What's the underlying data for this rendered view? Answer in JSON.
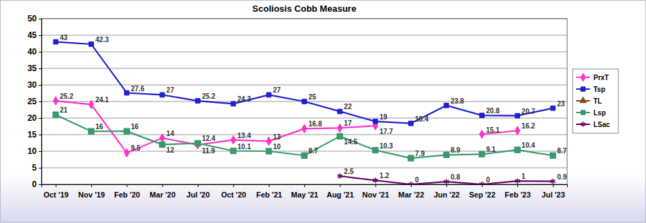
{
  "chart_data": {
    "type": "line",
    "title": "Scoliosis Cobb Measure",
    "categories": [
      "Oct '19",
      "Nov '19",
      "Feb '20",
      "Mar '20",
      "Jul '20",
      "Oct '20",
      "Feb '21",
      "May '21",
      "Aug '21",
      "Nov '21",
      "Mar '22",
      "Jun '22",
      "Sep '22",
      "Feb '23",
      "Jul '23"
    ],
    "series": [
      {
        "name": "PrxT",
        "color": "#ff33cc",
        "marker": "diamond",
        "values": [
          25.2,
          24.1,
          9.5,
          14,
          11.9,
          13.4,
          13,
          16.8,
          17,
          17.7,
          null,
          null,
          15.1,
          16.2,
          null
        ]
      },
      {
        "name": "Tsp",
        "color": "#2020cc",
        "marker": "square",
        "values": [
          43,
          42.3,
          27.6,
          27,
          25.2,
          24.3,
          27,
          25,
          22,
          19,
          18.4,
          23.8,
          20.8,
          20.7,
          23
        ]
      },
      {
        "name": "TL",
        "color": "#8b4513",
        "marker": "triangle",
        "values": [
          null,
          null,
          null,
          null,
          null,
          null,
          null,
          null,
          null,
          null,
          null,
          null,
          null,
          null,
          null
        ]
      },
      {
        "name": "Lsp",
        "color": "#3a9a6a",
        "marker": "square",
        "values": [
          21,
          16,
          16,
          12,
          12.4,
          10.1,
          10,
          8.7,
          14.5,
          10.3,
          7.9,
          8.9,
          9.1,
          10.4,
          8.7
        ]
      },
      {
        "name": "LSac",
        "color": "#660066",
        "marker": "asterisk",
        "values": [
          null,
          null,
          null,
          null,
          null,
          null,
          null,
          null,
          2.5,
          1.2,
          0,
          0.8,
          0,
          1,
          0.9
        ]
      }
    ],
    "ylim": [
      0,
      50
    ],
    "yticks": [
      0,
      5,
      10,
      15,
      20,
      25,
      30,
      35,
      40,
      45,
      50
    ],
    "grid": true,
    "legend": "right",
    "data_labels": true
  }
}
